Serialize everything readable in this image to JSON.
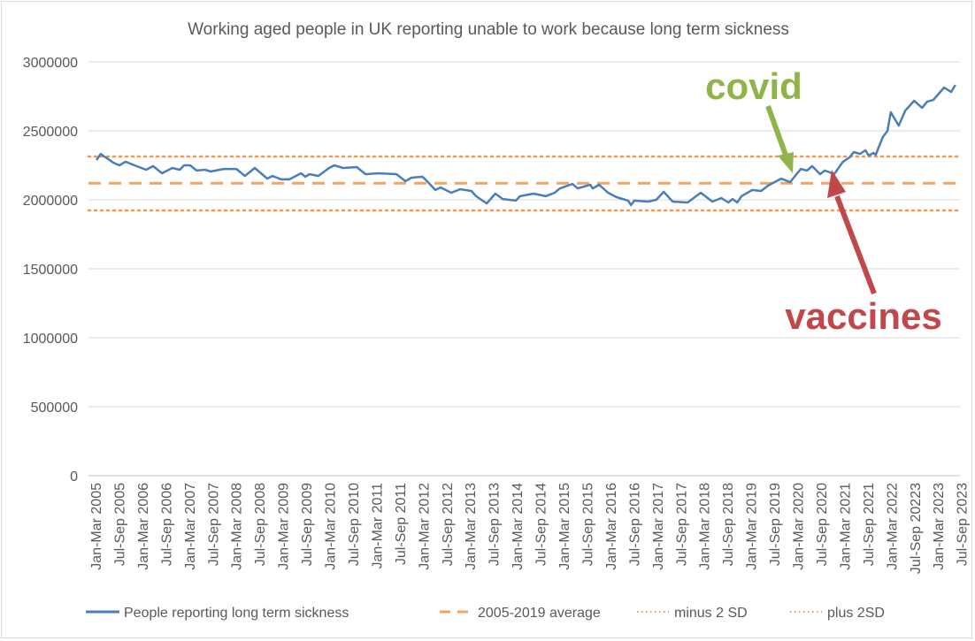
{
  "chart_data": {
    "type": "line",
    "title": "Working aged people in UK reporting unable to work because long term sickness",
    "xlabel": "",
    "ylabel": "",
    "ylim": [
      0,
      3000000
    ],
    "yticks": [
      "0",
      "500000",
      "1000000",
      "1500000",
      "2000000",
      "2500000",
      "3000000"
    ],
    "ytick_values": [
      0,
      500000,
      1000000,
      1500000,
      2000000,
      2500000,
      3000000
    ],
    "xlim_years": [
      2005,
      2023.4
    ],
    "xtick_labels": [
      "Jan-Mar 2005",
      "Jul-Sep 2005",
      "Jan-Mar 2006",
      "Jul-Sep 2006",
      "Jan-Mar 2007",
      "Jul-Sep 2007",
      "Jan-Mar 2008",
      "Jul-Sep 2008",
      "Jan-Mar 2009",
      "Jul-Sep 2009",
      "Jan-Mar 2010",
      "Jul-Sep 2010",
      "Jan-Mar 2011",
      "Jul-Sep 2011",
      "Jan-Mar 2012",
      "Jul-Sep 2012",
      "Jan-Mar 2013",
      "Jul-Sep 2013",
      "Jan-Mar 2014",
      "Jul-Sep 2014",
      "Jan-Mar 2015",
      "Jul-Sep 2015",
      "Jan-Mar 2016",
      "Jul-Sep 2016",
      "Jan-Mar 2017",
      "Jul-Sep 2017",
      "Jan-Mar 2018",
      "Jul-Sep 2018",
      "Jan-Mar 2019",
      "Jul-Sep 2019",
      "Jan-Mar 2020",
      "Jul-Sep 2020",
      "Jan-Mar 2021",
      "Jul-Sep 2021",
      "Jan-Mar 2022",
      "Jul-Sep 20223",
      "Jan-Mar 2023",
      "Jul-Sep 2023"
    ],
    "grid": true,
    "legend_position": "bottom",
    "series": [
      {
        "name": "People reporting long term sickness",
        "style": "solid",
        "color": "#4a7ebb",
        "x": [
          2005.02,
          2005.11,
          2005.38,
          2005.51,
          2005.64,
          2005.79,
          2006.08,
          2006.23,
          2006.42,
          2006.64,
          2006.8,
          2006.89,
          2007.02,
          2007.16,
          2007.34,
          2007.46,
          2007.74,
          2008.01,
          2008.19,
          2008.4,
          2008.67,
          2008.78,
          2008.97,
          2009.14,
          2009.39,
          2009.48,
          2009.57,
          2009.76,
          2009.99,
          2010.1,
          2010.29,
          2010.58,
          2010.77,
          2011.05,
          2011.43,
          2011.62,
          2011.75,
          2011.98,
          2012.03,
          2012.26,
          2012.37,
          2012.6,
          2012.79,
          2013.03,
          2013.13,
          2013.36,
          2013.54,
          2013.7,
          2013.98,
          2014.07,
          2014.36,
          2014.62,
          2014.81,
          2014.92,
          2015.19,
          2015.3,
          2015.57,
          2015.62,
          2015.76,
          2015.95,
          2016.13,
          2016.38,
          2016.44,
          2016.51,
          2016.81,
          2016.98,
          2017.14,
          2017.33,
          2017.65,
          2017.93,
          2018.18,
          2018.37,
          2018.52,
          2018.61,
          2018.71,
          2018.8,
          2019.03,
          2019.22,
          2019.37,
          2019.65,
          2019.84,
          2020.07,
          2020.2,
          2020.31,
          2020.48,
          2020.58,
          2020.69,
          2020.78,
          2020.97,
          2021.11,
          2021.2,
          2021.33,
          2021.45,
          2021.52,
          2021.62,
          2021.67,
          2021.82,
          2021.92,
          2021.99,
          2022.16,
          2022.3,
          2022.49,
          2022.66,
          2022.77,
          2022.9,
          2023.13,
          2023.28,
          2023.37
        ],
        "values": [
          2288000,
          2333000,
          2269000,
          2250000,
          2276000,
          2256000,
          2218000,
          2244000,
          2192000,
          2231000,
          2218000,
          2250000,
          2250000,
          2212000,
          2218000,
          2205000,
          2224000,
          2224000,
          2173000,
          2231000,
          2154000,
          2173000,
          2148000,
          2148000,
          2192000,
          2167000,
          2186000,
          2173000,
          2231000,
          2250000,
          2231000,
          2237000,
          2186000,
          2192000,
          2186000,
          2135000,
          2160000,
          2167000,
          2154000,
          2071000,
          2090000,
          2051000,
          2077000,
          2064000,
          2026000,
          1974000,
          2045000,
          2006000,
          1994000,
          2026000,
          2045000,
          2026000,
          2051000,
          2083000,
          2115000,
          2083000,
          2109000,
          2083000,
          2109000,
          2051000,
          2019000,
          1994000,
          1962000,
          1994000,
          1987000,
          2000000,
          2058000,
          1987000,
          1981000,
          2051000,
          1987000,
          2013000,
          1981000,
          2006000,
          1981000,
          2026000,
          2071000,
          2064000,
          2103000,
          2154000,
          2128000,
          2224000,
          2212000,
          2244000,
          2186000,
          2212000,
          2199000,
          2186000,
          2276000,
          2308000,
          2346000,
          2333000,
          2359000,
          2321000,
          2340000,
          2327000,
          2455000,
          2500000,
          2635000,
          2538000,
          2647000,
          2718000,
          2667000,
          2712000,
          2724000,
          2814000,
          2782000,
          2833000
        ]
      },
      {
        "name": "2005-2019 average",
        "style": "dashed",
        "color": "#f4a460",
        "value": 2120000
      },
      {
        "name": "minus 2 SD",
        "style": "dotted",
        "color": "#f79646",
        "value": 1923000
      },
      {
        "name": "plus 2SD",
        "style": "dotted",
        "color": "#f79646",
        "value": 2314000
      }
    ],
    "annotations": [
      {
        "text": "covid",
        "color": "#8fb54a",
        "points_to_year": 2020.2
      },
      {
        "text": "vaccines",
        "color": "#c0474a",
        "points_to_year": 2021.0
      }
    ]
  }
}
